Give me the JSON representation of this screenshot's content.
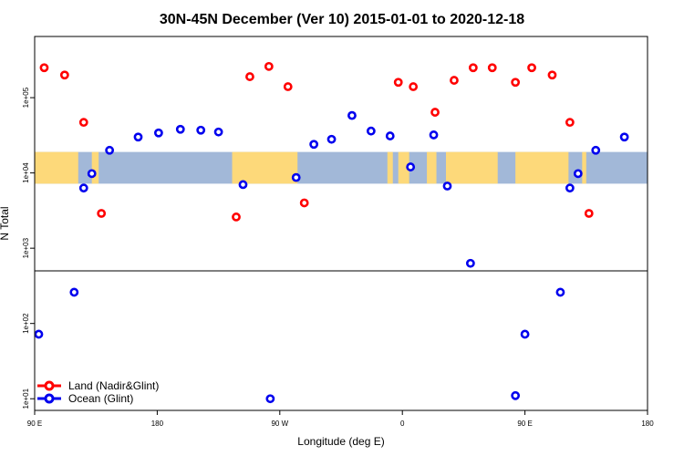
{
  "chart_data": {
    "type": "scatter",
    "title": "30N-45N December (Ver 10)   2015-01-01 to 2020-12-18",
    "xlabel": "Longitude (deg E)",
    "ylabel": "N Total",
    "x_axis": {
      "description": "longitude, deg E, continuous from 90 E eastward through 180 and 90 W to 0 and 90 E, ending at 180",
      "range_deg_east_of_start": [
        0,
        450
      ],
      "tick_labels": [
        "90 E",
        "180",
        "90 W",
        "0",
        "90 E",
        "180"
      ],
      "tick_longitudes_deg_e": [
        90,
        180,
        270,
        360,
        450,
        540
      ]
    },
    "y_axis": {
      "scale": "log",
      "range": [
        7,
        650000
      ],
      "tick_labels": [
        "1e+01",
        "1e+02",
        "1e+03",
        "1e+04",
        "1e+05"
      ],
      "tick_values": [
        10,
        100,
        1000,
        10000,
        100000
      ]
    },
    "reference_line_y": 500,
    "map_strip": {
      "latitude_band": "30N-45N",
      "y_range": [
        7200,
        19000
      ],
      "ocean_color": "#a2b8d8",
      "land_color": "#fdd97a"
    },
    "grid": false,
    "legend_position": "bottom-left",
    "series": [
      {
        "name": "Land (Nadir&Glint)",
        "color": "#ff0000",
        "points": [
          {
            "lon": 97,
            "n": 250000
          },
          {
            "lon": 112,
            "n": 200000
          },
          {
            "lon": 126,
            "n": 47000
          },
          {
            "lon": 139,
            "n": 2900
          },
          {
            "lon": 238,
            "n": 2600
          },
          {
            "lon": 248,
            "n": 190000
          },
          {
            "lon": 262,
            "n": 260000
          },
          {
            "lon": 276,
            "n": 140000
          },
          {
            "lon": 288,
            "n": 4000
          },
          {
            "lon": 357,
            "n": 160000
          },
          {
            "lon": 368,
            "n": 140000
          },
          {
            "lon": 384,
            "n": 64000
          },
          {
            "lon": 398,
            "n": 170000
          },
          {
            "lon": 412,
            "n": 250000
          },
          {
            "lon": 426,
            "n": 250000
          },
          {
            "lon": 443,
            "n": 160000
          },
          {
            "lon": 455,
            "n": 250000
          },
          {
            "lon": 470,
            "n": 200000
          },
          {
            "lon": 483,
            "n": 47000
          },
          {
            "lon": 497,
            "n": 2900
          }
        ]
      },
      {
        "name": "Ocean (Glint)",
        "color": "#0000ee",
        "points": [
          {
            "lon": 93,
            "n": 72
          },
          {
            "lon": 119,
            "n": 260
          },
          {
            "lon": 126,
            "n": 6300
          },
          {
            "lon": 132,
            "n": 9800
          },
          {
            "lon": 145,
            "n": 20000
          },
          {
            "lon": 166,
            "n": 30000
          },
          {
            "lon": 181,
            "n": 34000
          },
          {
            "lon": 197,
            "n": 38000
          },
          {
            "lon": 212,
            "n": 37000
          },
          {
            "lon": 225,
            "n": 35000
          },
          {
            "lon": 243,
            "n": 7000
          },
          {
            "lon": 263,
            "n": 10
          },
          {
            "lon": 282,
            "n": 8700
          },
          {
            "lon": 295,
            "n": 24000
          },
          {
            "lon": 308,
            "n": 28000
          },
          {
            "lon": 323,
            "n": 58000
          },
          {
            "lon": 337,
            "n": 36000
          },
          {
            "lon": 351,
            "n": 31000
          },
          {
            "lon": 366,
            "n": 12000
          },
          {
            "lon": 383,
            "n": 32000
          },
          {
            "lon": 393,
            "n": 6700
          },
          {
            "lon": 410,
            "n": 630
          },
          {
            "lon": 443,
            "n": 11
          },
          {
            "lon": 450,
            "n": 72
          },
          {
            "lon": 476,
            "n": 260
          },
          {
            "lon": 483,
            "n": 6300
          },
          {
            "lon": 489,
            "n": 9800
          },
          {
            "lon": 502,
            "n": 20000
          },
          {
            "lon": 523,
            "n": 30000
          }
        ]
      }
    ]
  }
}
